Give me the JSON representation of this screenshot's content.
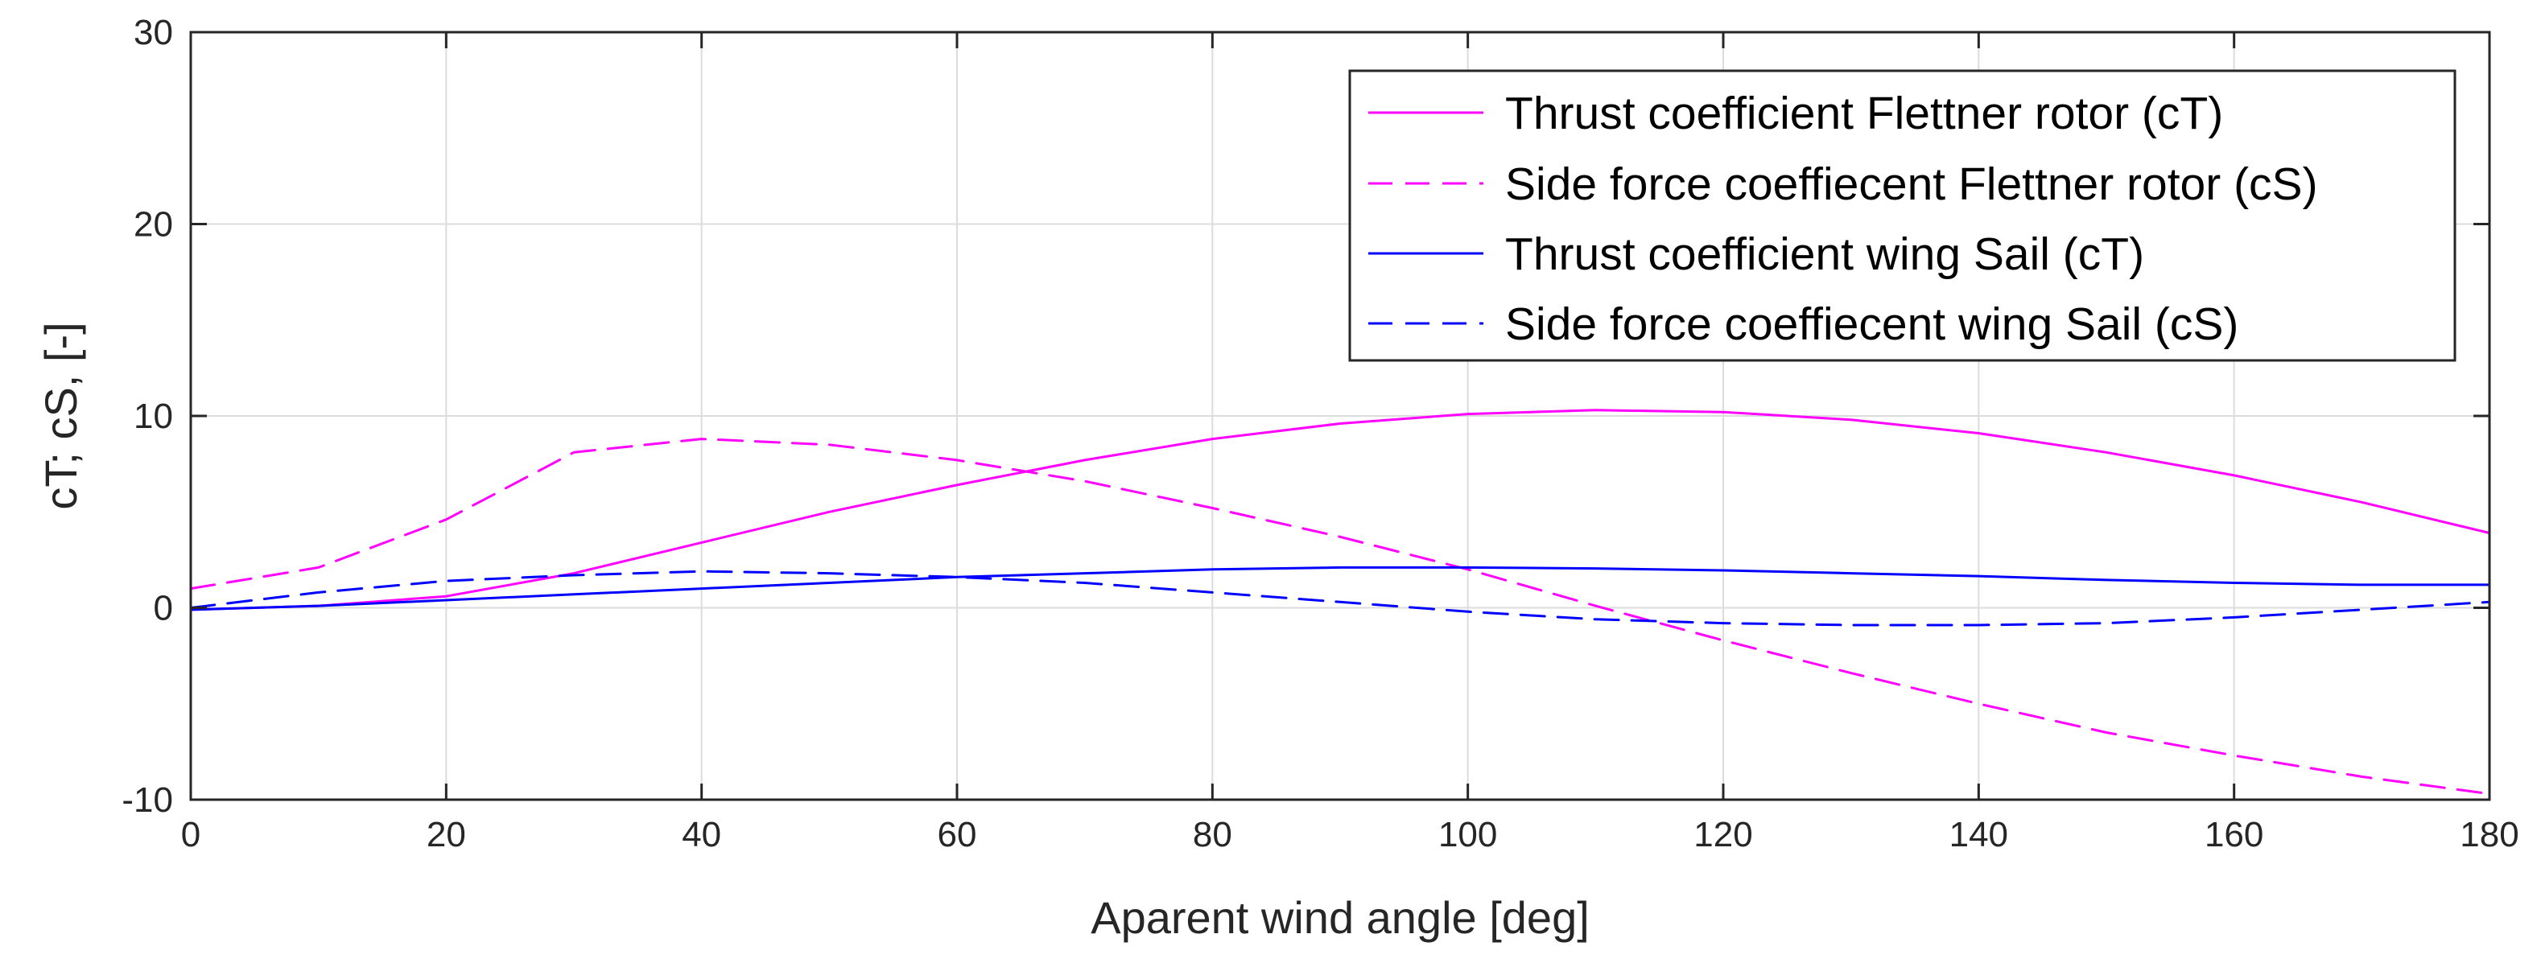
{
  "chart_data": {
    "type": "line",
    "title": "",
    "xlabel": "Aparent wind angle [deg]",
    "ylabel": "cT; cS, [-]",
    "xlim": [
      0,
      180
    ],
    "ylim": [
      -10,
      30
    ],
    "xticks": [
      "0",
      "20",
      "40",
      "60",
      "80",
      "100",
      "120",
      "140",
      "160",
      "180"
    ],
    "yticks": [
      "-10",
      "0",
      "10",
      "20",
      "30"
    ],
    "grid": true,
    "legend_location": "top-right",
    "x": [
      0,
      10,
      20,
      30,
      40,
      50,
      60,
      70,
      80,
      90,
      100,
      110,
      120,
      130,
      140,
      150,
      160,
      170,
      180
    ],
    "series": [
      {
        "name": "Thrust coefficient Flettner rotor (cT)",
        "color": "#ff00ff",
        "dash": "solid",
        "values": [
          -0.1,
          0.1,
          0.6,
          1.8,
          3.4,
          5.0,
          6.4,
          7.7,
          8.8,
          9.6,
          10.1,
          10.3,
          10.2,
          9.8,
          9.1,
          8.1,
          6.9,
          5.5,
          3.9
        ]
      },
      {
        "name": "Side force coeffiecent Flettner rotor (cS)",
        "color": "#ff00ff",
        "dash": "dashed",
        "values": [
          1.0,
          2.1,
          4.6,
          8.1,
          8.8,
          8.5,
          7.7,
          6.6,
          5.2,
          3.7,
          2.0,
          0.1,
          -1.7,
          -3.4,
          -5.0,
          -6.5,
          -7.7,
          -8.8,
          -9.7
        ]
      },
      {
        "name": "Thrust coefficient wing Sail (cT)",
        "color": "#0000ff",
        "dash": "solid",
        "values": [
          -0.1,
          0.1,
          0.4,
          0.7,
          1.0,
          1.3,
          1.6,
          1.8,
          2.0,
          2.1,
          2.1,
          2.05,
          1.95,
          1.8,
          1.65,
          1.45,
          1.3,
          1.2,
          1.2
        ]
      },
      {
        "name": "Side force coeffiecent wing Sail (cS)",
        "color": "#0000ff",
        "dash": "dashed",
        "values": [
          0.0,
          0.8,
          1.4,
          1.7,
          1.9,
          1.8,
          1.6,
          1.3,
          0.8,
          0.3,
          -0.2,
          -0.6,
          -0.8,
          -0.9,
          -0.9,
          -0.8,
          -0.5,
          -0.1,
          0.3
        ]
      }
    ]
  }
}
